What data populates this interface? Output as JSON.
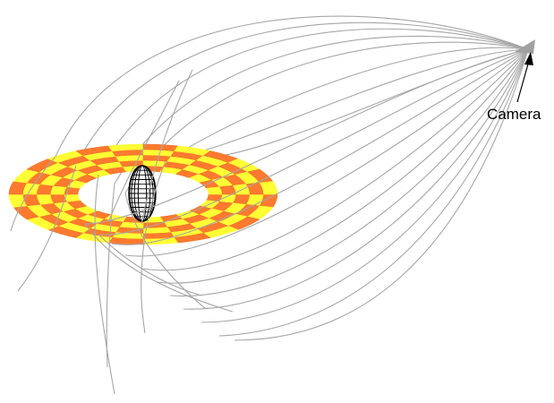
{
  "labels": {
    "camera": "Camera"
  },
  "diagram": {
    "subject": "black-hole-light-ray-tracing",
    "accretion_disk": {
      "pattern": "checkerboard",
      "colors": {
        "a": "#ffff33",
        "b": "#ff7a2e",
        "grid": "#e06a2a"
      },
      "rings": 5,
      "sectors_per_ring": 24
    },
    "central_object": {
      "shape": "ellipsoid-wireframe",
      "stroke": "#000000",
      "fill": "#ffffff"
    },
    "light_rays": {
      "count": 22,
      "color": "#a6a6a6"
    },
    "camera": {
      "color": "#a0a0a0"
    },
    "annotation_arrow": {
      "color": "#000000"
    }
  }
}
